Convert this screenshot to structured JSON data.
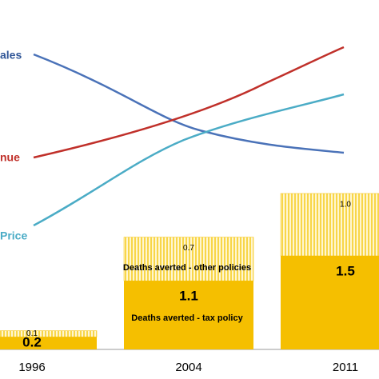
{
  "chart_data": {
    "type": "bar",
    "line_labels": [
      {
        "text": "ales",
        "color": "#2f5597"
      },
      {
        "text": "nue",
        "color": "#c0302a"
      },
      {
        "text": "Price",
        "color": "#4bacc6"
      }
    ],
    "categories": [
      "1996",
      "2004",
      "2011"
    ],
    "series": [
      {
        "name": "Deaths averted - tax policy",
        "color": "#f5bf00",
        "values": [
          0.2,
          1.1,
          1.5
        ]
      },
      {
        "name": "Deaths averted - other policies",
        "color": "#f5bf00",
        "values": [
          0.1,
          0.7,
          1.0
        ],
        "value_labels": [
          "0.1",
          "0.7",
          "1.0"
        ]
      }
    ],
    "ylim": [
      0,
      5.5
    ]
  }
}
